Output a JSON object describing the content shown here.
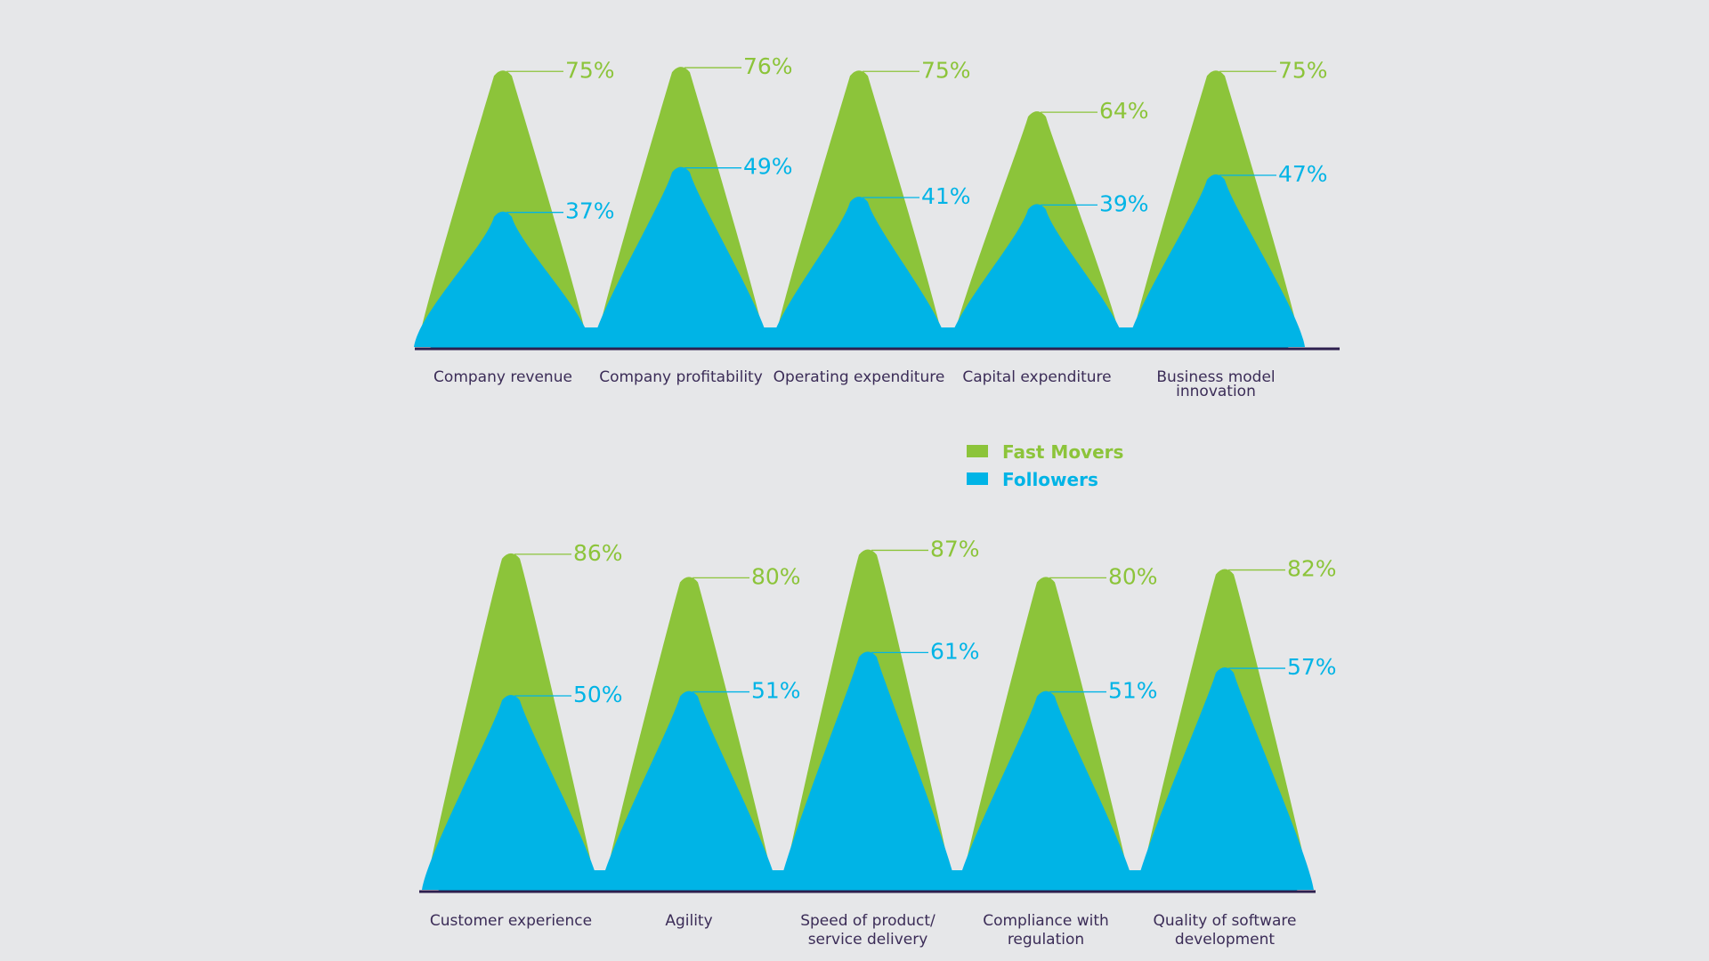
{
  "colors": {
    "fast_movers": "#8cc43a",
    "followers": "#00b4e6",
    "axis": "#2d1f4e",
    "category_text": "#3b2c57",
    "background": "#e6e7e9"
  },
  "legend": [
    {
      "label": "Fast Movers",
      "color": "#8cc43a"
    },
    {
      "label": "Followers",
      "color": "#00b4e6"
    }
  ],
  "chart_data": [
    {
      "type": "area",
      "categories": [
        [
          "Company revenue"
        ],
        [
          "Company profitability"
        ],
        [
          "Operating expenditure"
        ],
        [
          "Capital expenditure"
        ],
        [
          "Business model",
          "innovation"
        ]
      ],
      "series": [
        {
          "name": "Fast Movers",
          "values": [
            75,
            76,
            75,
            64,
            75
          ],
          "labels": [
            "75%",
            "76%",
            "75%",
            "64%",
            "75%"
          ]
        },
        {
          "name": "Followers",
          "values": [
            37,
            49,
            41,
            39,
            47
          ],
          "labels": [
            "37%",
            "49%",
            "41%",
            "39%",
            "47%"
          ]
        }
      ],
      "unit": "%",
      "ylim": [
        0,
        100
      ],
      "grid": false,
      "legend_position": "center"
    },
    {
      "type": "area",
      "categories": [
        [
          "Customer experience"
        ],
        [
          "Agility"
        ],
        [
          "Speed of product/",
          "service delivery"
        ],
        [
          "Compliance with",
          "regulation"
        ],
        [
          "Quality of software",
          "development"
        ]
      ],
      "series": [
        {
          "name": "Fast Movers",
          "values": [
            86,
            80,
            87,
            80,
            82
          ],
          "labels": [
            "86%",
            "80%",
            "87%",
            "80%",
            "82%"
          ]
        },
        {
          "name": "Followers",
          "values": [
            50,
            51,
            61,
            51,
            57
          ],
          "labels": [
            "50%",
            "51%",
            "61%",
            "51%",
            "57%"
          ]
        }
      ],
      "unit": "%",
      "ylim": [
        0,
        100
      ],
      "grid": false,
      "legend_position": "center"
    }
  ]
}
